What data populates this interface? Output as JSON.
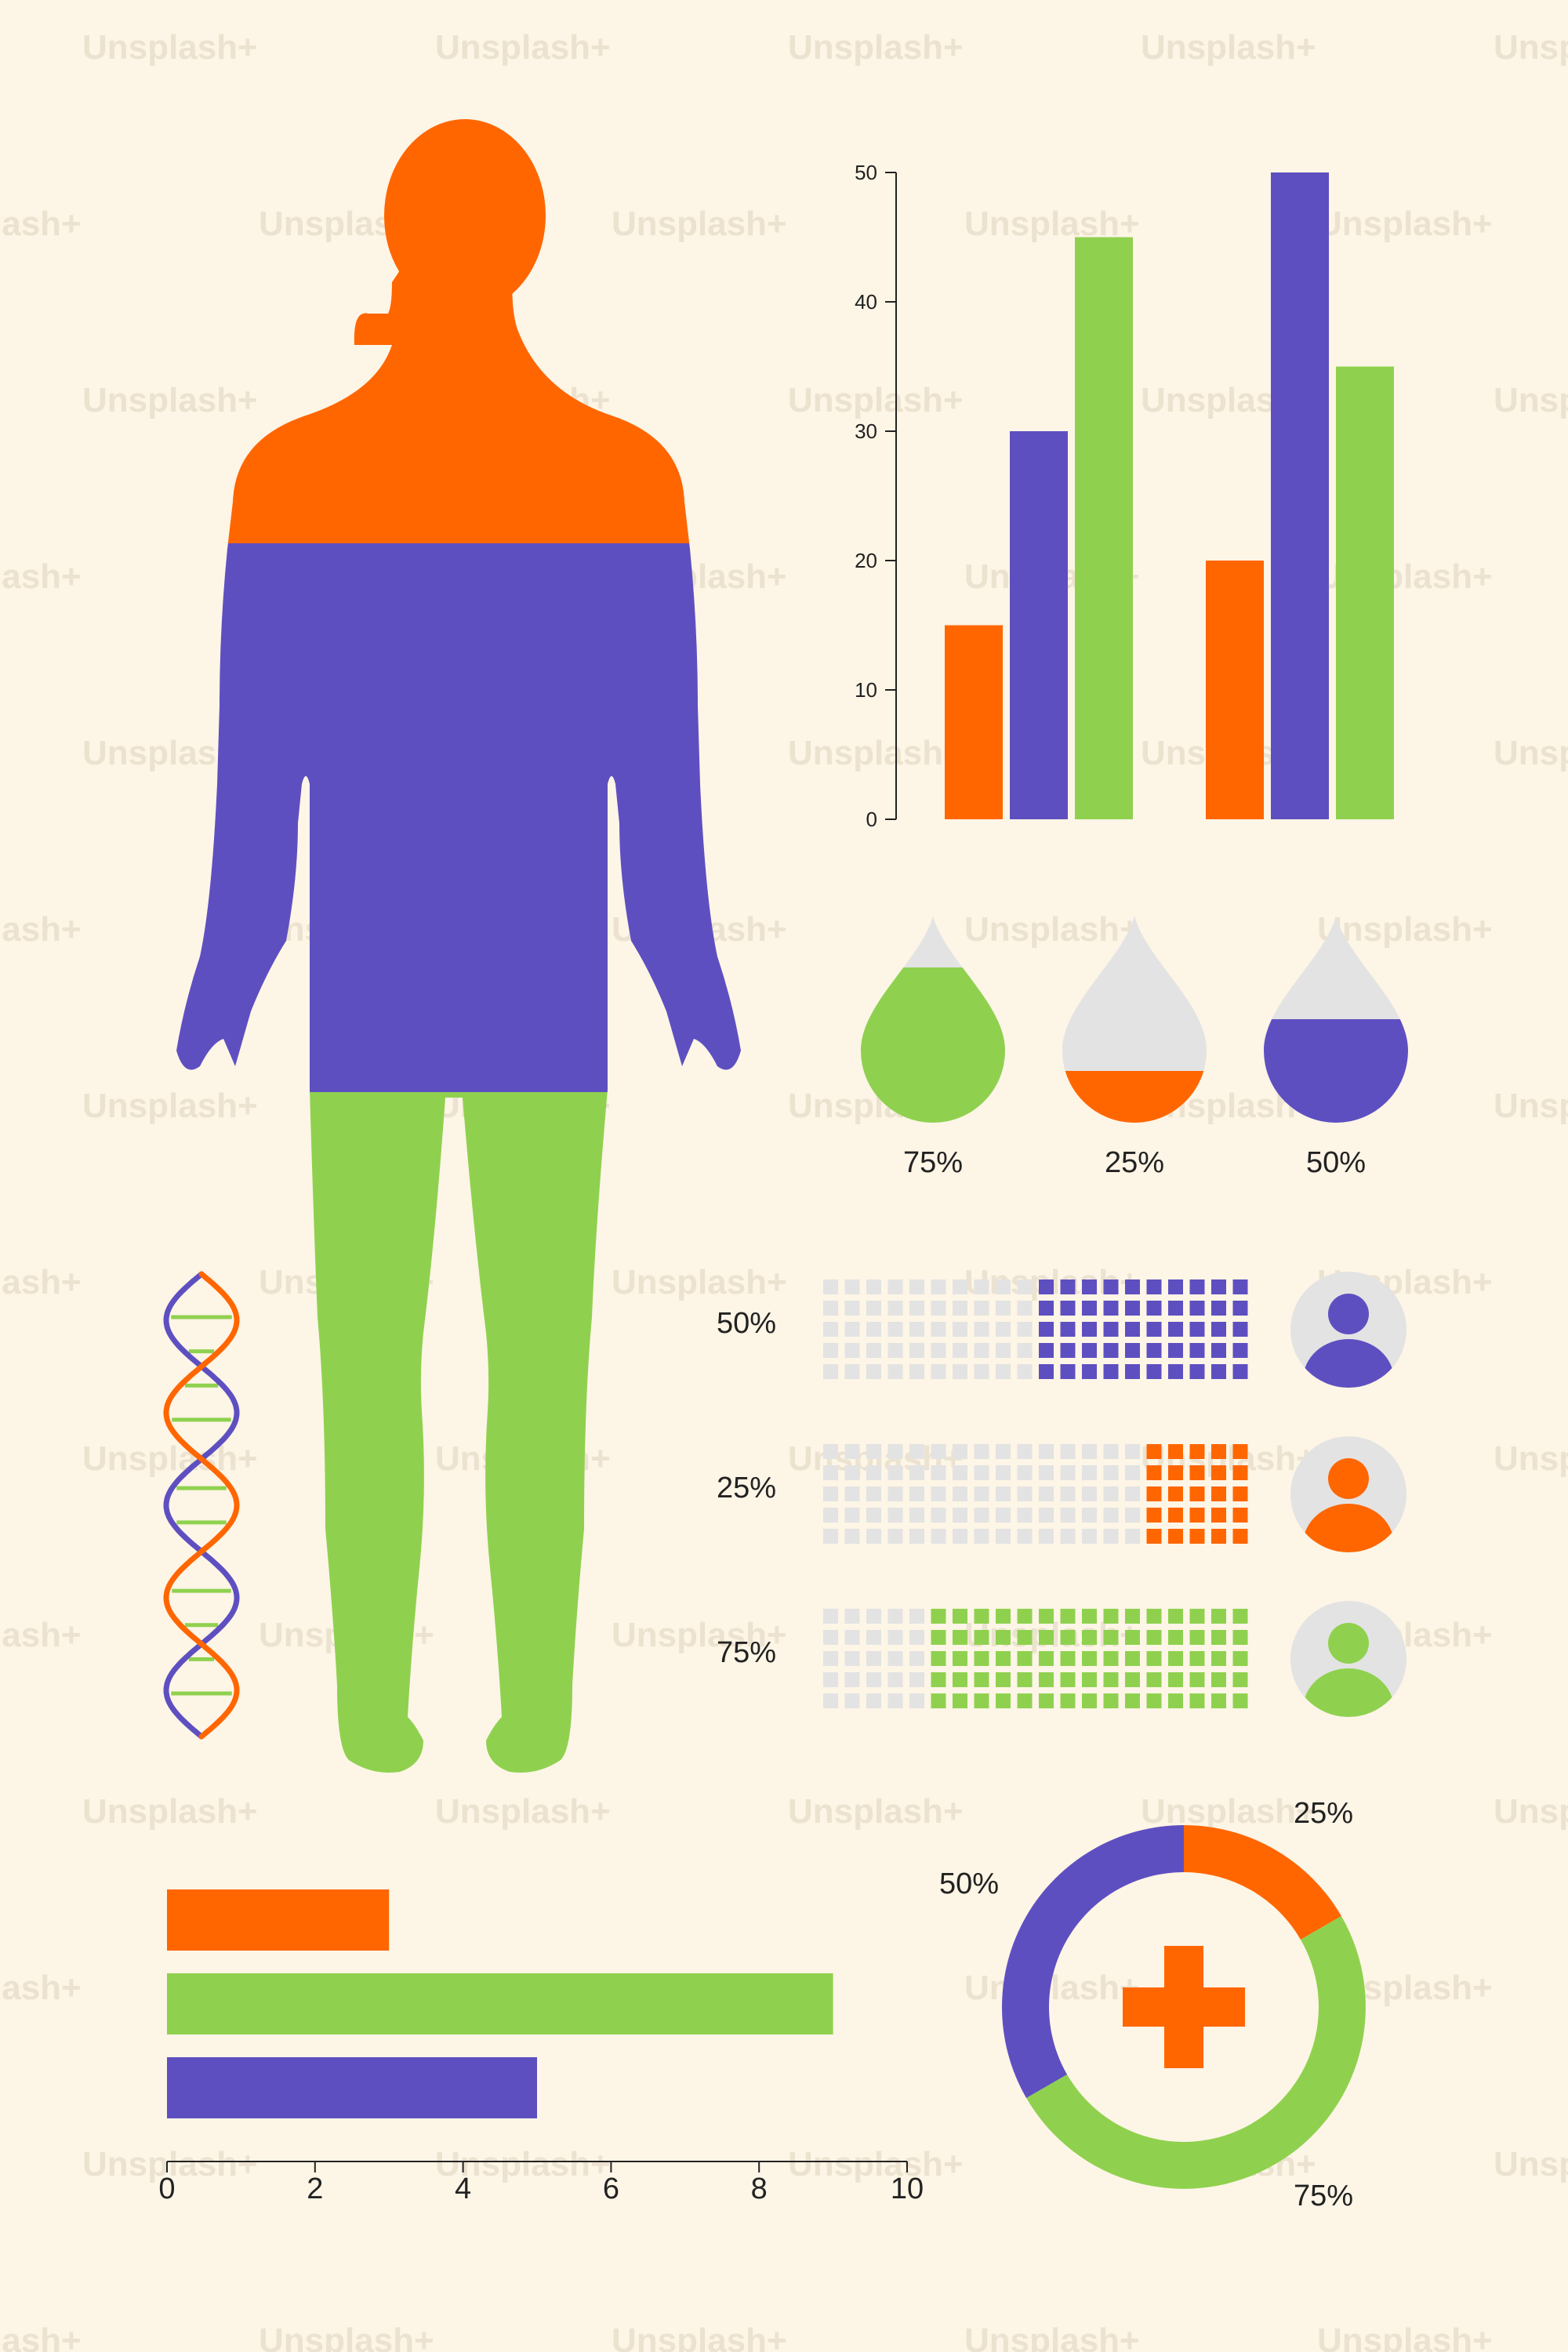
{
  "watermark_text": "Unsplash+",
  "colors": {
    "orange": "#ff6600",
    "purple": "#5e4fc1",
    "green": "#8fd14f",
    "grey": "#e3e3e3",
    "background": "#fdf5e6",
    "text": "#222222"
  },
  "chart_data": [
    {
      "type": "bar",
      "orientation": "vertical",
      "categories": [
        "",
        ""
      ],
      "series": [
        {
          "values": [
            15,
            20
          ],
          "color": "#ff6600"
        },
        {
          "values": [
            30,
            50
          ],
          "color": "#5e4fc1"
        },
        {
          "values": [
            45,
            35
          ],
          "color": "#8fd14f"
        }
      ],
      "yticks": [
        "0",
        "10",
        "20",
        "30",
        "40",
        "50"
      ],
      "ylim": [
        0,
        50
      ],
      "grid": false
    },
    {
      "type": "gauge-drops",
      "items": [
        {
          "label": "75%",
          "value": 0.75,
          "color": "#8fd14f"
        },
        {
          "label": "25%",
          "value": 0.25,
          "color": "#ff6600"
        },
        {
          "label": "50%",
          "value": 0.5,
          "color": "#5e4fc1"
        }
      ]
    },
    {
      "type": "waffle",
      "items": [
        {
          "label": "50%",
          "value": 0.5,
          "color": "#5e4fc1",
          "icon": "person-icon"
        },
        {
          "label": "25%",
          "value": 0.25,
          "color": "#ff6600",
          "icon": "person-icon"
        },
        {
          "label": "75%",
          "value": 0.75,
          "color": "#8fd14f",
          "icon": "person-icon"
        }
      ]
    },
    {
      "type": "bar",
      "orientation": "horizontal",
      "values": [
        3,
        9,
        5
      ],
      "colors": [
        "#ff6600",
        "#8fd14f",
        "#5e4fc1"
      ],
      "xticks": [
        "0",
        "2",
        "4",
        "6",
        "8",
        "10"
      ],
      "xlim": [
        0,
        10
      ]
    },
    {
      "type": "donut",
      "slices": [
        {
          "label": "25%",
          "value": 25,
          "color": "#ff6600"
        },
        {
          "label": "75%",
          "value": 75,
          "color": "#8fd14f"
        },
        {
          "label": "50%",
          "value": 50,
          "color": "#5e4fc1"
        }
      ],
      "center_icon": "medical-cross-icon"
    }
  ],
  "illustrations": {
    "human_body_colors": [
      "#ff6600",
      "#5e4fc1",
      "#8fd14f"
    ],
    "dna_colors": [
      "#ff6600",
      "#5e4fc1",
      "#8fd14f"
    ]
  }
}
